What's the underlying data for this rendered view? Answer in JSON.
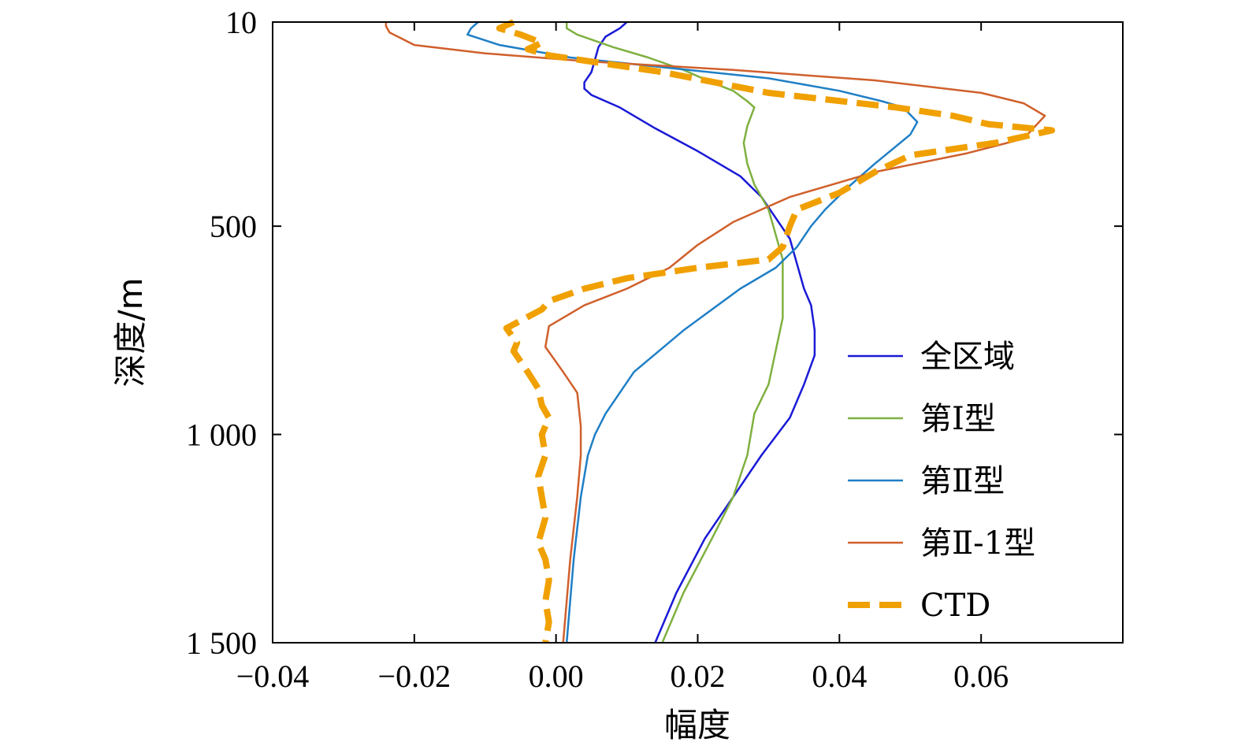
{
  "chart_data": {
    "type": "line",
    "orientation": "depth-profile",
    "xlabel": "幅度",
    "ylabel": "深度/m",
    "xlim": [
      -0.04,
      0.08
    ],
    "ylim": [
      10,
      1500
    ],
    "y_inverted": true,
    "x_ticks": [
      -0.04,
      -0.02,
      0.0,
      0.02,
      0.04,
      0.06
    ],
    "x_tick_labels": [
      "−0.04",
      "−0.02",
      "0.00",
      "0.02",
      "0.04",
      "0.06"
    ],
    "y_ticks": [
      10,
      500,
      1000,
      1500
    ],
    "y_tick_labels": [
      "10",
      "500",
      "1 000",
      "1 500"
    ],
    "grid": false,
    "legend_position": "right",
    "series": [
      {
        "name": "全区域",
        "color": "#1a1ad6",
        "style": "solid",
        "points": [
          [
            0.01,
            10
          ],
          [
            0.009,
            25
          ],
          [
            0.007,
            45
          ],
          [
            0.006,
            70
          ],
          [
            0.0055,
            100
          ],
          [
            0.005,
            130
          ],
          [
            0.004,
            155
          ],
          [
            0.004,
            170
          ],
          [
            0.005,
            185
          ],
          [
            0.009,
            215
          ],
          [
            0.014,
            265
          ],
          [
            0.02,
            320
          ],
          [
            0.026,
            380
          ],
          [
            0.029,
            430
          ],
          [
            0.031,
            480
          ],
          [
            0.033,
            530
          ],
          [
            0.034,
            590
          ],
          [
            0.035,
            650
          ],
          [
            0.036,
            690
          ],
          [
            0.0365,
            750
          ],
          [
            0.0365,
            810
          ],
          [
            0.035,
            880
          ],
          [
            0.033,
            960
          ],
          [
            0.029,
            1050
          ],
          [
            0.025,
            1150
          ],
          [
            0.021,
            1250
          ],
          [
            0.017,
            1380
          ],
          [
            0.014,
            1500
          ]
        ]
      },
      {
        "name": "第Ⅰ型",
        "color": "#7fb040",
        "style": "solid",
        "points": [
          [
            0.0015,
            10
          ],
          [
            0.0015,
            25
          ],
          [
            0.003,
            40
          ],
          [
            0.008,
            70
          ],
          [
            0.013,
            95
          ],
          [
            0.018,
            125
          ],
          [
            0.022,
            155
          ],
          [
            0.025,
            175
          ],
          [
            0.027,
            200
          ],
          [
            0.028,
            215
          ],
          [
            0.027,
            260
          ],
          [
            0.0265,
            300
          ],
          [
            0.027,
            350
          ],
          [
            0.028,
            400
          ],
          [
            0.03,
            460
          ],
          [
            0.031,
            520
          ],
          [
            0.032,
            580
          ],
          [
            0.032,
            650
          ],
          [
            0.032,
            720
          ],
          [
            0.031,
            800
          ],
          [
            0.03,
            880
          ],
          [
            0.028,
            950
          ],
          [
            0.027,
            1050
          ],
          [
            0.025,
            1150
          ],
          [
            0.022,
            1250
          ],
          [
            0.018,
            1380
          ],
          [
            0.015,
            1500
          ]
        ]
      },
      {
        "name": "第Ⅱ型",
        "color": "#1f7fc6",
        "style": "solid",
        "points": [
          [
            -0.011,
            10
          ],
          [
            -0.012,
            25
          ],
          [
            -0.0125,
            40
          ],
          [
            -0.008,
            65
          ],
          [
            0.002,
            95
          ],
          [
            0.016,
            120
          ],
          [
            0.03,
            145
          ],
          [
            0.04,
            175
          ],
          [
            0.046,
            200
          ],
          [
            0.049,
            215
          ],
          [
            0.051,
            250
          ],
          [
            0.05,
            280
          ],
          [
            0.045,
            350
          ],
          [
            0.041,
            410
          ],
          [
            0.038,
            460
          ],
          [
            0.036,
            500
          ],
          [
            0.034,
            550
          ],
          [
            0.031,
            600
          ],
          [
            0.026,
            650
          ],
          [
            0.018,
            750
          ],
          [
            0.011,
            850
          ],
          [
            0.007,
            950
          ],
          [
            0.0055,
            1000
          ],
          [
            0.0045,
            1050
          ],
          [
            0.0035,
            1150
          ],
          [
            0.0025,
            1300
          ],
          [
            0.0015,
            1500
          ]
        ]
      },
      {
        "name": "第Ⅱ-1型",
        "color": "#d0602c",
        "style": "solid",
        "points": [
          [
            -0.024,
            10
          ],
          [
            -0.024,
            20
          ],
          [
            -0.0235,
            35
          ],
          [
            -0.02,
            65
          ],
          [
            -0.01,
            85
          ],
          [
            0.005,
            105
          ],
          [
            0.025,
            125
          ],
          [
            0.045,
            150
          ],
          [
            0.06,
            180
          ],
          [
            0.066,
            205
          ],
          [
            0.069,
            235
          ],
          [
            0.066,
            290
          ],
          [
            0.058,
            325
          ],
          [
            0.045,
            370
          ],
          [
            0.033,
            430
          ],
          [
            0.025,
            490
          ],
          [
            0.02,
            545
          ],
          [
            0.016,
            600
          ],
          [
            0.01,
            650
          ],
          [
            0.004,
            690
          ],
          [
            -0.001,
            740
          ],
          [
            -0.0015,
            790
          ],
          [
            0.001,
            850
          ],
          [
            0.003,
            900
          ],
          [
            0.0035,
            980
          ],
          [
            0.0035,
            1050
          ],
          [
            0.003,
            1150
          ],
          [
            0.002,
            1300
          ],
          [
            0.001,
            1500
          ]
        ]
      },
      {
        "name": "CTD",
        "color": "#f0a000",
        "style": "dashed",
        "points": [
          [
            -0.006,
            10
          ],
          [
            -0.008,
            25
          ],
          [
            -0.005,
            40
          ],
          [
            -0.002,
            60
          ],
          [
            -0.004,
            75
          ],
          [
            -0.001,
            90
          ],
          [
            0.005,
            105
          ],
          [
            0.015,
            130
          ],
          [
            0.03,
            180
          ],
          [
            0.048,
            215
          ],
          [
            0.056,
            235
          ],
          [
            0.061,
            255
          ],
          [
            0.07,
            270
          ],
          [
            0.062,
            300
          ],
          [
            0.05,
            330
          ],
          [
            0.045,
            370
          ],
          [
            0.04,
            420
          ],
          [
            0.034,
            460
          ],
          [
            0.033,
            500
          ],
          [
            0.032,
            550
          ],
          [
            0.03,
            580
          ],
          [
            0.02,
            600
          ],
          [
            0.01,
            625
          ],
          [
            0.004,
            650
          ],
          [
            -0.001,
            680
          ],
          [
            -0.002,
            700
          ],
          [
            -0.007,
            745
          ],
          [
            -0.0055,
            780
          ],
          [
            -0.006,
            800
          ],
          [
            -0.004,
            850
          ],
          [
            -0.0025,
            890
          ],
          [
            -0.002,
            930
          ],
          [
            -0.001,
            960
          ],
          [
            -0.002,
            1000
          ],
          [
            -0.0015,
            1050
          ],
          [
            -0.0025,
            1100
          ],
          [
            -0.002,
            1150
          ],
          [
            -0.0015,
            1200
          ],
          [
            -0.0025,
            1260
          ],
          [
            -0.0015,
            1300
          ],
          [
            -0.001,
            1350
          ],
          [
            -0.0015,
            1400
          ],
          [
            -0.001,
            1450
          ],
          [
            -0.0015,
            1500
          ]
        ]
      }
    ]
  }
}
